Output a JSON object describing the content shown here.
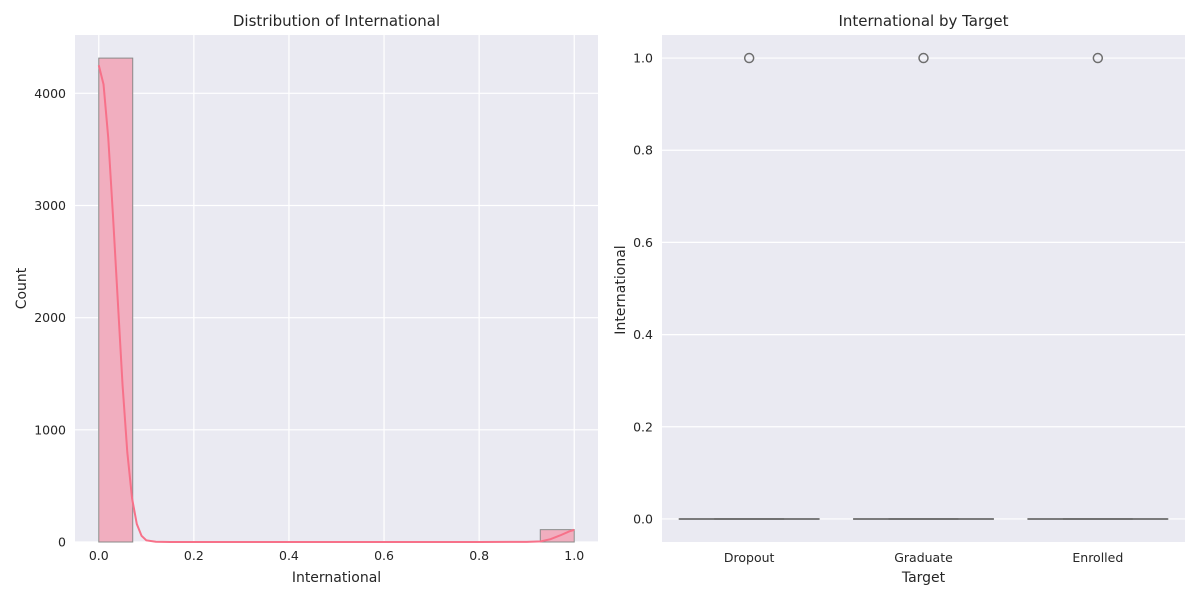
{
  "chart_data": [
    {
      "type": "bar",
      "title": "Distribution of International",
      "xlabel": "International",
      "ylabel": "Count",
      "xlim": [
        -0.05,
        1.05
      ],
      "ylim": [
        0,
        4520
      ],
      "xticks": [
        "0.0",
        "0.2",
        "0.4",
        "0.6",
        "0.8",
        "1.0"
      ],
      "yticks": [
        "0",
        "1000",
        "2000",
        "3000",
        "4000"
      ],
      "grid": true,
      "bins": [
        {
          "x0": 0.0,
          "x1": 0.0714,
          "count": 4314
        },
        {
          "x0": 0.9286,
          "x1": 1.0,
          "count": 110
        }
      ],
      "kde": {
        "x": [
          0.0,
          0.01,
          0.02,
          0.03,
          0.04,
          0.05,
          0.06,
          0.07,
          0.08,
          0.09,
          0.1,
          0.12,
          0.15,
          0.2,
          0.4,
          0.6,
          0.8,
          0.9,
          0.93,
          0.95,
          0.97,
          0.99,
          1.0
        ],
        "y": [
          4250,
          4080,
          3600,
          2900,
          2150,
          1400,
          800,
          390,
          160,
          55,
          15,
          2,
          0,
          0,
          0,
          0,
          0,
          1,
          6,
          25,
          58,
          95,
          108
        ]
      },
      "colors": {
        "bar": "#f1aebf",
        "line": "#f77189",
        "edge": "#8a8a8a"
      }
    },
    {
      "type": "box",
      "title": "International by Target",
      "xlabel": "Target",
      "ylabel": "International",
      "categories": [
        "Dropout",
        "Graduate",
        "Enrolled"
      ],
      "ylim": [
        -0.05,
        1.05
      ],
      "yticks": [
        "0.0",
        "0.2",
        "0.4",
        "0.6",
        "0.8",
        "1.0"
      ],
      "grid": true,
      "boxes": [
        {
          "category": "Dropout",
          "q1": 0,
          "median": 0,
          "q3": 0,
          "whisker_low": 0,
          "whisker_high": 0,
          "outliers": [
            1.0
          ]
        },
        {
          "category": "Graduate",
          "q1": 0,
          "median": 0,
          "q3": 0,
          "whisker_low": 0,
          "whisker_high": 0,
          "outliers": [
            1.0
          ]
        },
        {
          "category": "Enrolled",
          "q1": 0,
          "median": 0,
          "q3": 0,
          "whisker_low": 0,
          "whisker_high": 0,
          "outliers": [
            1.0
          ]
        }
      ],
      "colors": {
        "box": "#6e6e6e"
      }
    }
  ]
}
